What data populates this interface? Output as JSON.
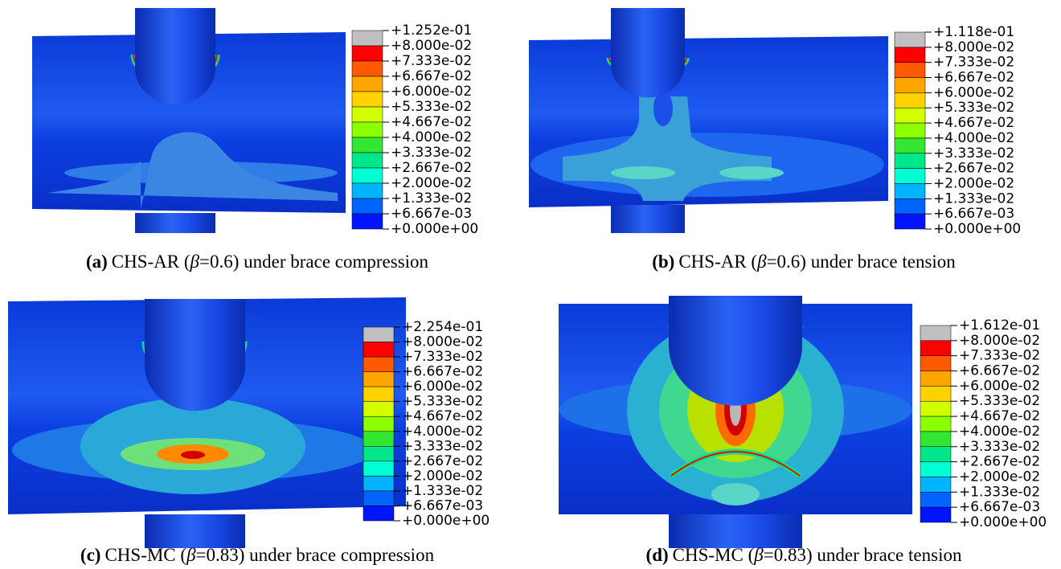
{
  "contour_colors": [
    "#c0c0c0",
    "#ff0000",
    "#ff5a00",
    "#ffa500",
    "#ffd200",
    "#d2ff00",
    "#8cff00",
    "#32e632",
    "#00e68c",
    "#00ffd2",
    "#00b4ff",
    "#0064ff",
    "#0014ff"
  ],
  "panels": [
    {
      "legend": [
        "+1.252e-01",
        "+8.000e-02",
        "+7.333e-02",
        "+6.667e-02",
        "+6.000e-02",
        "+5.333e-02",
        "+4.667e-02",
        "+4.000e-02",
        "+3.333e-02",
        "+2.667e-02",
        "+2.000e-02",
        "+1.333e-02",
        "+6.667e-03",
        "+0.000e+00"
      ],
      "caption": {
        "label": "(a)",
        "prefix": "CHS-AR (",
        "symbol": "β",
        "suffix": "=0.6) under brace compression"
      }
    },
    {
      "legend": [
        "+1.118e-01",
        "+8.000e-02",
        "+7.333e-02",
        "+6.667e-02",
        "+6.000e-02",
        "+5.333e-02",
        "+4.667e-02",
        "+4.000e-02",
        "+3.333e-02",
        "+2.667e-02",
        "+2.000e-02",
        "+1.333e-02",
        "+6.667e-03",
        "+0.000e+00"
      ],
      "caption": {
        "label": "(b)",
        "prefix": "CHS-AR (",
        "symbol": "β",
        "suffix": "=0.6) under brace tension"
      }
    },
    {
      "legend": [
        "+2.254e-01",
        "+8.000e-02",
        "+7.333e-02",
        "+6.667e-02",
        "+6.000e-02",
        "+5.333e-02",
        "+4.667e-02",
        "+4.000e-02",
        "+3.333e-02",
        "+2.667e-02",
        "+2.000e-02",
        "+1.333e-02",
        "+6.667e-03",
        "+0.000e+00"
      ],
      "caption": {
        "label": "(c)",
        "prefix": "CHS-MC (",
        "symbol": "β",
        "suffix": "=0.83) under brace compression"
      }
    },
    {
      "legend": [
        "+1.612e-01",
        "+8.000e-02",
        "+7.333e-02",
        "+6.667e-02",
        "+6.000e-02",
        "+5.333e-02",
        "+4.667e-02",
        "+4.000e-02",
        "+3.333e-02",
        "+2.667e-02",
        "+2.000e-02",
        "+1.333e-02",
        "+6.667e-03",
        "+0.000e+00"
      ],
      "caption": {
        "label": "(d)",
        "prefix": "CHS-MC (",
        "symbol": "β",
        "suffix": "=0.83) under brace tension"
      }
    }
  ]
}
